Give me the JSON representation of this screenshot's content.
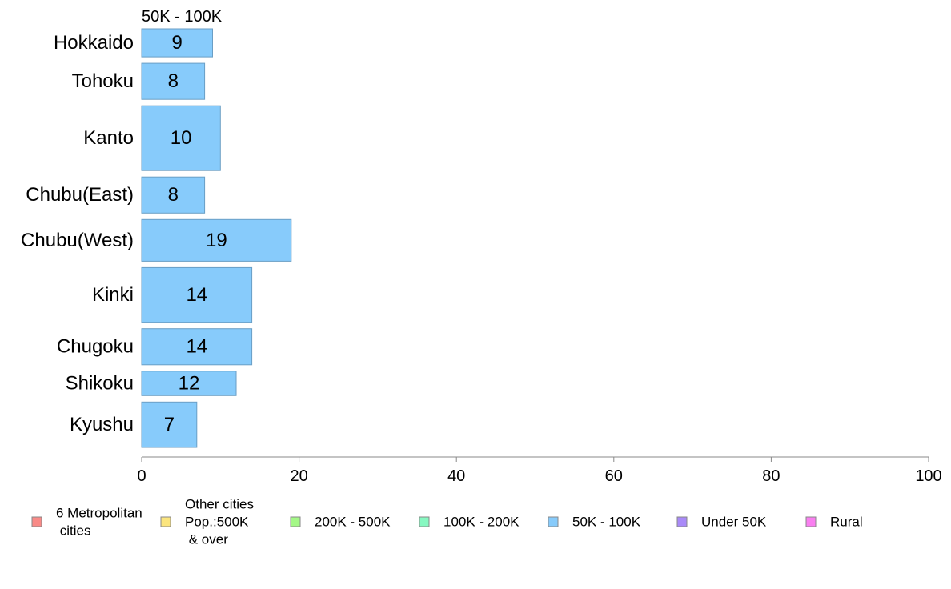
{
  "chart_data": {
    "type": "bar",
    "orientation": "horizontal",
    "variable_width": true,
    "title": "50K - 100K",
    "categories": [
      "Hokkaido",
      "Tohoku",
      "Kanto",
      "Chubu(East)",
      "Chubu(West)",
      "Kinki",
      "Chugoku",
      "Shikoku",
      "Kyushu"
    ],
    "values": [
      9,
      8,
      10,
      8,
      19,
      14,
      14,
      12,
      7
    ],
    "data_labels": [
      "9",
      "8",
      "10",
      "8",
      "19",
      "14",
      "14",
      "12",
      "7"
    ],
    "relative_widths": [
      1.3,
      1.67,
      3.0,
      1.67,
      1.93,
      2.53,
      1.67,
      1.13,
      2.1
    ],
    "xlim": [
      0,
      100
    ],
    "xticks": [
      0,
      20,
      40,
      60,
      80,
      100
    ],
    "xtick_labels": [
      "0",
      "20",
      "40",
      "60",
      "80",
      "100"
    ],
    "xlabel": "",
    "ylabel": "",
    "grid": false,
    "bar_color": "#87cbfb",
    "bar_edge_color": "#6a9ec5",
    "legend_placement": "bottom",
    "legend": [
      {
        "label": "6 Metropolitan\n cities",
        "color": "#f98a87"
      },
      {
        "label": "Other cities\nPop.:500K\n & over",
        "color": "#fbe57e"
      },
      {
        "label": "200K - 500K",
        "color": "#a4f887"
      },
      {
        "label": "100K - 200K",
        "color": "#87f8c1"
      },
      {
        "label": "50K - 100K",
        "color": "#87cbfb"
      },
      {
        "label": "Under 50K",
        "color": "#a98af8"
      },
      {
        "label": "Rural",
        "color": "#f97ff0"
      }
    ]
  }
}
